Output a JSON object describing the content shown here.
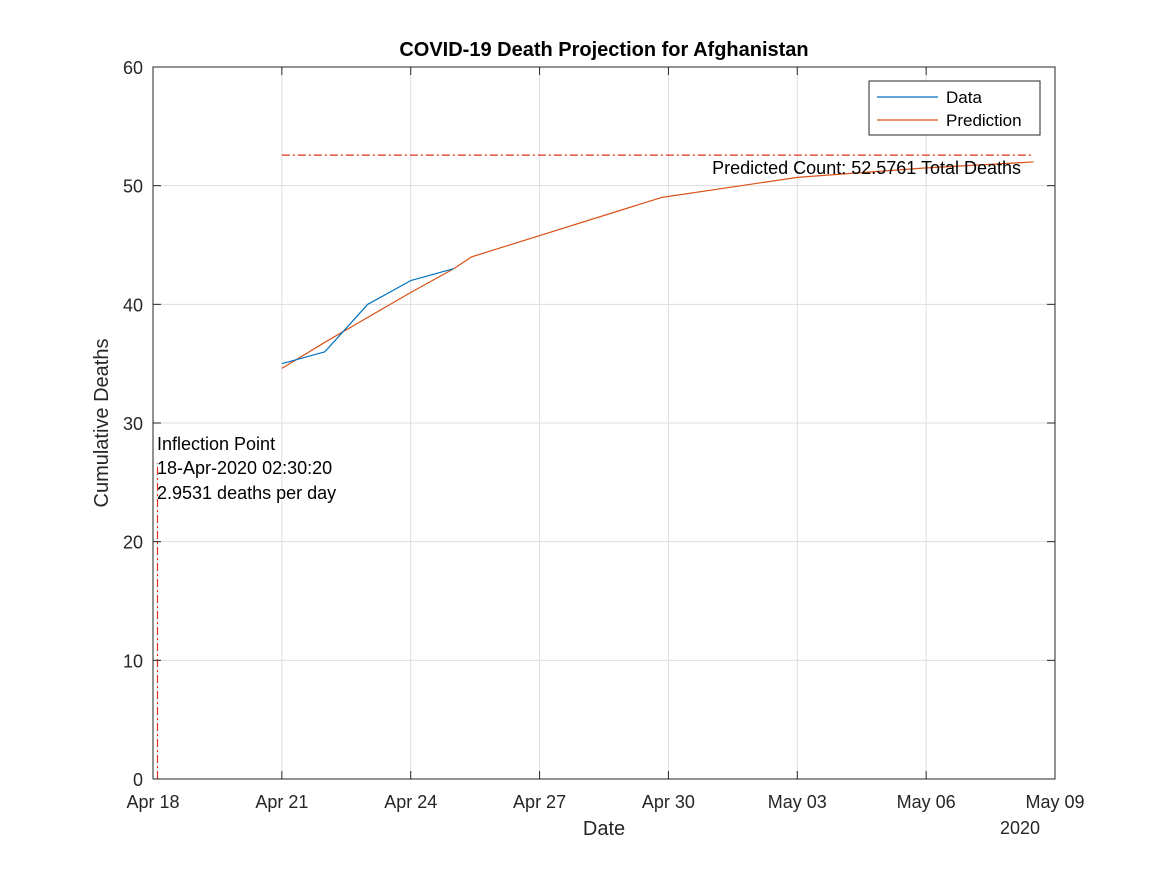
{
  "chart_data": {
    "type": "line",
    "title": "COVID-19 Death Projection for Afghanistan",
    "xlabel": "Date",
    "ylabel": "Cumulative Deaths",
    "year_label": "2020",
    "xlim": [
      "2020-04-18",
      "2020-05-09"
    ],
    "ylim": [
      0,
      60
    ],
    "x_ticks": [
      {
        "date": "2020-04-18",
        "label": "Apr 18"
      },
      {
        "date": "2020-04-21",
        "label": "Apr 21"
      },
      {
        "date": "2020-04-24",
        "label": "Apr 24"
      },
      {
        "date": "2020-04-27",
        "label": "Apr 27"
      },
      {
        "date": "2020-04-30",
        "label": "Apr 30"
      },
      {
        "date": "2020-05-03",
        "label": "May 03"
      },
      {
        "date": "2020-05-06",
        "label": "May 06"
      },
      {
        "date": "2020-05-09",
        "label": "May 09"
      }
    ],
    "y_ticks": [
      0,
      10,
      20,
      30,
      40,
      50,
      60
    ],
    "grid": true,
    "legend_position": "top-right",
    "series": [
      {
        "name": "Data",
        "color": "#0072BD",
        "points": [
          {
            "date": "2020-04-21",
            "y": 35
          },
          {
            "date": "2020-04-22",
            "y": 36
          },
          {
            "date": "2020-04-23",
            "y": 40
          },
          {
            "date": "2020-04-24",
            "y": 42
          },
          {
            "date": "2020-04-25",
            "y": 43
          }
        ]
      },
      {
        "name": "Prediction",
        "color": "#D95319",
        "points": [
          {
            "date": "2020-04-21",
            "y": 34.6
          },
          {
            "date": "2020-04-22",
            "y": 36.8
          },
          {
            "date": "2020-04-23",
            "y": 38.9
          },
          {
            "date": "2020-04-24",
            "y": 41.0
          },
          {
            "date": "2020-04-25",
            "y": 43.0
          },
          {
            "date": "2020-04-25 10:00",
            "y": 44.0
          },
          {
            "date": "2020-04-29 20:00",
            "y": 49.0
          },
          {
            "date": "2020-05-03",
            "y": 50.7
          },
          {
            "date": "2020-05-06",
            "y": 51.5
          },
          {
            "date": "2020-05-08 12:00",
            "y": 52.0
          }
        ]
      }
    ],
    "reference_lines": [
      {
        "orientation": "horizontal",
        "y": 52.5761,
        "from": "2020-04-21",
        "to": "2020-05-08 12:00",
        "color": "#E0301E",
        "style": "dash-dot"
      },
      {
        "orientation": "vertical",
        "date": "2020-04-18 02:30:20",
        "y_from": 0,
        "y_to": 26.6,
        "color": "#E0301E",
        "style": "dash-dot"
      }
    ],
    "annotations": {
      "predicted_count": "Predicted Count: 52.5761 Total Deaths",
      "inflection_lines": [
        "Inflection Point",
        "18-Apr-2020 02:30:20",
        "2.9531 deaths per day"
      ]
    }
  }
}
